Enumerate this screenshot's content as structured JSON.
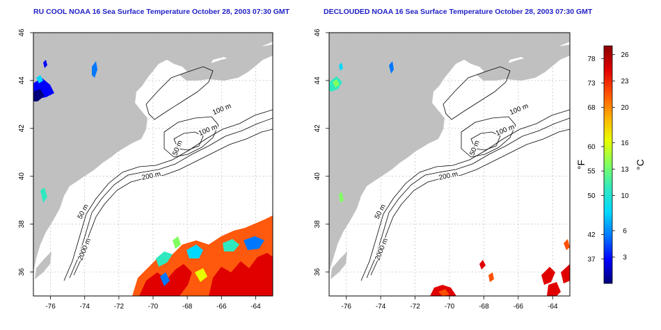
{
  "panels": [
    {
      "id": "left",
      "title": "RU COOL NOAA 16 Sea Surface Temperature October 28, 2003 07:30 GMT",
      "contour_labels": [
        "100 m",
        "100 m",
        "50 m",
        "200 m",
        "50 m",
        "2000 m"
      ]
    },
    {
      "id": "right",
      "title": "DECLOUDED NOAA 16 Sea Surface Temperature October 28, 2003 07:30 GMT",
      "contour_labels": [
        "100 m",
        "100 m",
        "50 m",
        "200 m",
        "50 m",
        "2000 m"
      ]
    }
  ],
  "axes": {
    "lat_ticks": [
      "46",
      "44",
      "42",
      "40",
      "38",
      "36"
    ],
    "lon_ticks": [
      "-76",
      "-74",
      "-72",
      "-70",
      "-68",
      "-66",
      "-64"
    ],
    "lat_range": [
      35,
      46
    ],
    "lon_range": [
      -77,
      -63
    ]
  },
  "colorbar": {
    "f_label": "°F",
    "c_label": "°C",
    "f_ticks": [
      "78",
      "73",
      "68",
      "60",
      "55",
      "50",
      "42",
      "37"
    ],
    "c_ticks": [
      "26",
      "23",
      "20",
      "16",
      "13",
      "10",
      "6",
      "3"
    ],
    "f_tick_values": [
      78,
      73,
      68,
      60,
      55,
      50,
      42,
      37
    ],
    "c_tick_values": [
      26,
      23,
      20,
      16,
      13,
      10,
      6,
      3
    ],
    "range_c": [
      0,
      27
    ],
    "colors": [
      "#00007a",
      "#0000ff",
      "#0077ff",
      "#00d8ff",
      "#30e8c0",
      "#80ff60",
      "#e8ff00",
      "#ffb000",
      "#ff5000",
      "#e00000",
      "#8a0000"
    ]
  },
  "colors": {
    "land": "#c0c0c0",
    "ocean": "#ffffff",
    "title": "#1f1fc4",
    "contour": "#000000",
    "grid": "#bdbdbd"
  }
}
